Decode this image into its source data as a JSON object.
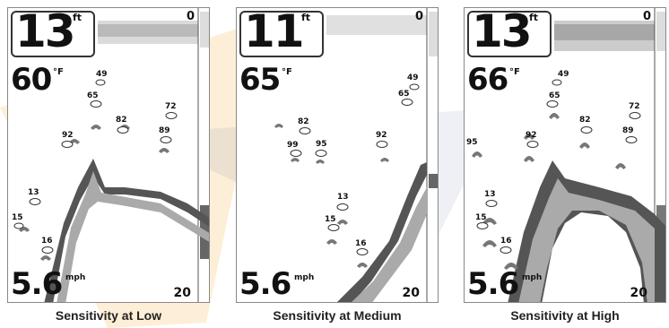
{
  "panels": [
    {
      "caption": "Sensitivity at Low",
      "depth": "13",
      "depth_unit": "ft",
      "temperature": "60",
      "temperature_unit": "°F",
      "speed": "5.6",
      "speed_unit": "mph",
      "scale_top": "0",
      "scale_bottom": "20",
      "fish_depths": [
        "49",
        "65",
        "72",
        "82",
        "89",
        "92",
        "13",
        "15",
        "16"
      ]
    },
    {
      "caption": "Sensitivity at Medium",
      "depth": "11",
      "depth_unit": "ft",
      "temperature": "65",
      "temperature_unit": "°F",
      "speed": "5.6",
      "speed_unit": "mph",
      "scale_top": "0",
      "scale_bottom": "20",
      "fish_depths": [
        "49",
        "65",
        "82",
        "99",
        "95",
        "92",
        "13",
        "15",
        "16"
      ]
    },
    {
      "caption": "Sensitivity at High",
      "depth": "13",
      "depth_unit": "ft",
      "temperature": "66",
      "temperature_unit": "°F",
      "speed": "5.6",
      "speed_unit": "mph",
      "scale_top": "0",
      "scale_bottom": "20",
      "fish_depths": [
        "49",
        "65",
        "72",
        "82",
        "89",
        "92",
        "95",
        "13",
        "15",
        "16"
      ]
    }
  ],
  "colors": {
    "watermark_orange": "#f5a623",
    "watermark_blue": "#2a3a8c",
    "bottom_dark": "#555555"
  }
}
